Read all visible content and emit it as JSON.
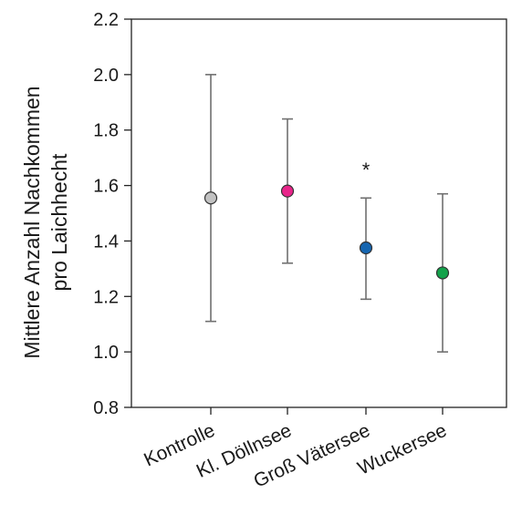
{
  "chart_data": {
    "type": "scatter",
    "title": "",
    "xlabel": "",
    "ylabel_lines": [
      "Mittlere Anzahl Nachkommen",
      "pro Laichhecht"
    ],
    "ylim": [
      0.8,
      2.2
    ],
    "yticks": [
      "0.8",
      "1.0",
      "1.2",
      "1.4",
      "1.6",
      "1.8",
      "2.0",
      "2.2"
    ],
    "categories": [
      "Kontrolle",
      "Kl. Döllnsee",
      "Groß Vätersee",
      "Wuckersee"
    ],
    "series": [
      {
        "values": [
          1.555,
          1.58,
          1.375,
          1.285
        ],
        "error_low": [
          1.11,
          1.32,
          1.19,
          1.0
        ],
        "error_high": [
          2.0,
          1.84,
          1.555,
          1.57
        ],
        "colors": [
          "#c2c2c2",
          "#e8258a",
          "#1565b0",
          "#14a24b"
        ]
      }
    ],
    "annotations": [
      {
        "category": "Groß Vätersee",
        "text": "*",
        "y": 1.665
      }
    ],
    "grid": false,
    "legend": "none"
  }
}
